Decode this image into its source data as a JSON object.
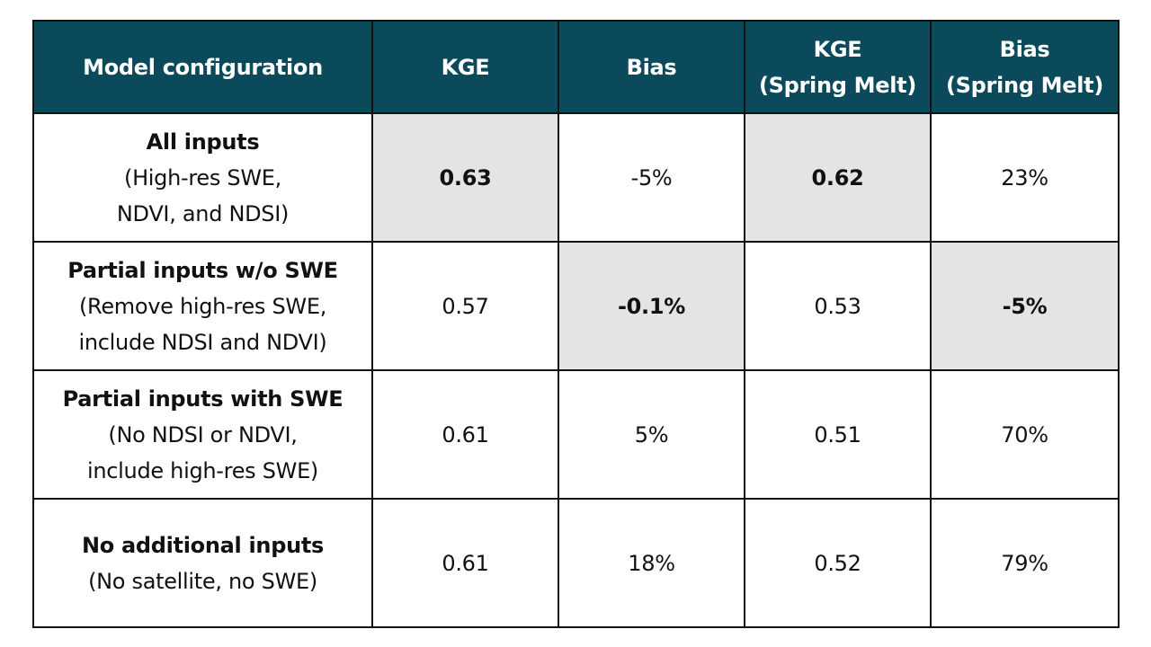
{
  "table": {
    "headers": [
      {
        "key": "config",
        "lines": [
          "Model configuration"
        ]
      },
      {
        "key": "kge",
        "lines": [
          "KGE"
        ]
      },
      {
        "key": "bias",
        "lines": [
          "Bias"
        ]
      },
      {
        "key": "kge_spring",
        "lines": [
          "KGE",
          "(Spring Melt)"
        ]
      },
      {
        "key": "bias_spring",
        "lines": [
          "Bias",
          "(Spring Melt)"
        ]
      }
    ],
    "rows": [
      {
        "title": "All inputs",
        "subtitle": [
          "(High-res SWE,",
          "NDVI, and NDSI)"
        ],
        "kge": "0.63",
        "bias": "-5%",
        "kge_spring": "0.62",
        "bias_spring": "23%"
      },
      {
        "title": "Partial inputs w/o SWE",
        "subtitle": [
          "(Remove high-res SWE,",
          "include NDSI and NDVI)"
        ],
        "kge": "0.57",
        "bias": "-0.1%",
        "kge_spring": "0.53",
        "bias_spring": "-5%"
      },
      {
        "title": "Partial inputs with SWE",
        "subtitle": [
          "(No NDSI or NDVI,",
          "include high-res SWE)"
        ],
        "kge": "0.61",
        "bias": "5%",
        "kge_spring": "0.51",
        "bias_spring": "70%"
      },
      {
        "title": "No additional inputs",
        "subtitle": [
          "(No satellite, no SWE)"
        ],
        "kge": "0.61",
        "bias": "18%",
        "kge_spring": "0.52",
        "bias_spring": "79%"
      }
    ],
    "highlighted_best_cells": [
      {
        "row": 0,
        "column": "kge"
      },
      {
        "row": 0,
        "column": "kge_spring"
      },
      {
        "row": 1,
        "column": "bias"
      },
      {
        "row": 1,
        "column": "bias_spring"
      }
    ]
  },
  "colors": {
    "header_background": "#0a4a5a",
    "header_text": "#ffffff",
    "highlight_background": "#e4e4e4",
    "border": "#111111"
  }
}
